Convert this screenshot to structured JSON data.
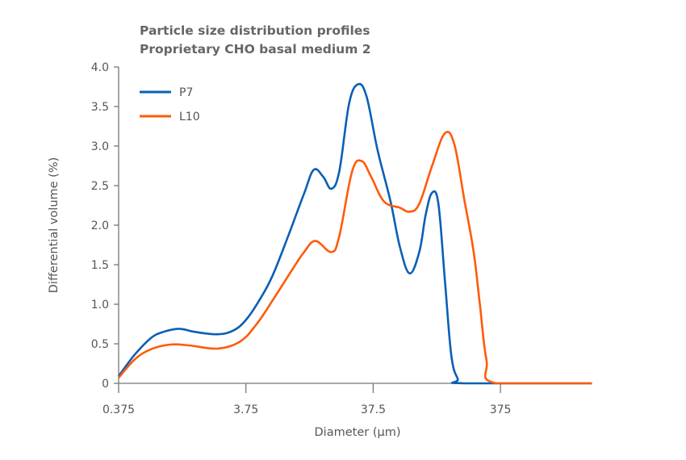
{
  "chart_data": {
    "type": "line",
    "title": "Particle size distribution profiles",
    "subtitle": "Proprietary CHO basal medium 2",
    "xlabel": "Diameter (µm)",
    "ylabel": "Differential volume (%)",
    "x_scale": "log",
    "xlim": [
      0.375,
      1963
    ],
    "ylim": [
      0,
      4.0
    ],
    "x_ticks": [
      "0.375",
      "3.75",
      "37.5",
      "375"
    ],
    "x_tick_values": [
      0.375,
      3.75,
      37.5,
      375
    ],
    "y_ticks": [
      "0",
      "0.5",
      "1.0",
      "1.5",
      "2.0",
      "2.5",
      "3.0",
      "3.5",
      "4.0"
    ],
    "y_tick_values": [
      0,
      0.5,
      1.0,
      1.5,
      2.0,
      2.5,
      3.0,
      3.5,
      4.0
    ],
    "grid": false,
    "legend_position": "top-left",
    "series": [
      {
        "name": "P7",
        "color": "#0a5fb4",
        "x": [
          0.375,
          0.5,
          0.67,
          0.84,
          1.12,
          1.5,
          2.25,
          3.01,
          3.79,
          4.78,
          6.03,
          8.05,
          10.74,
          12.8,
          15.2,
          17.6,
          20.3,
          24.2,
          28.4,
          33.2,
          40.6,
          51.3,
          60.9,
          72.5,
          86.3,
          96.9,
          108.8,
          122,
          137,
          154,
          173,
          194,
          1963
        ],
        "y": [
          0.09,
          0.36,
          0.57,
          0.65,
          0.69,
          0.65,
          0.62,
          0.67,
          0.81,
          1.05,
          1.35,
          1.86,
          2.4,
          2.7,
          2.61,
          2.46,
          2.68,
          3.53,
          3.78,
          3.63,
          2.95,
          2.3,
          1.72,
          1.39,
          1.66,
          2.13,
          2.41,
          2.27,
          1.32,
          0.36,
          0.06,
          0.0,
          0.0
        ]
      },
      {
        "name": "L10",
        "color": "#ff5a0a",
        "x": [
          0.375,
          0.5,
          0.67,
          0.95,
          1.34,
          2.25,
          3.38,
          4.51,
          6.03,
          8.53,
          10.74,
          13.2,
          17.6,
          20.3,
          25.6,
          30.5,
          36.2,
          45.6,
          60.9,
          72.5,
          86.3,
          108.8,
          137,
          163,
          194,
          231,
          259,
          291,
          346,
          1963
        ],
        "y": [
          0.07,
          0.3,
          0.43,
          0.49,
          0.48,
          0.44,
          0.53,
          0.74,
          1.04,
          1.42,
          1.66,
          1.8,
          1.66,
          1.86,
          2.68,
          2.81,
          2.61,
          2.3,
          2.22,
          2.17,
          2.27,
          2.75,
          3.16,
          3.02,
          2.34,
          1.66,
          0.98,
          0.3,
          0.0,
          0.0
        ]
      }
    ]
  }
}
